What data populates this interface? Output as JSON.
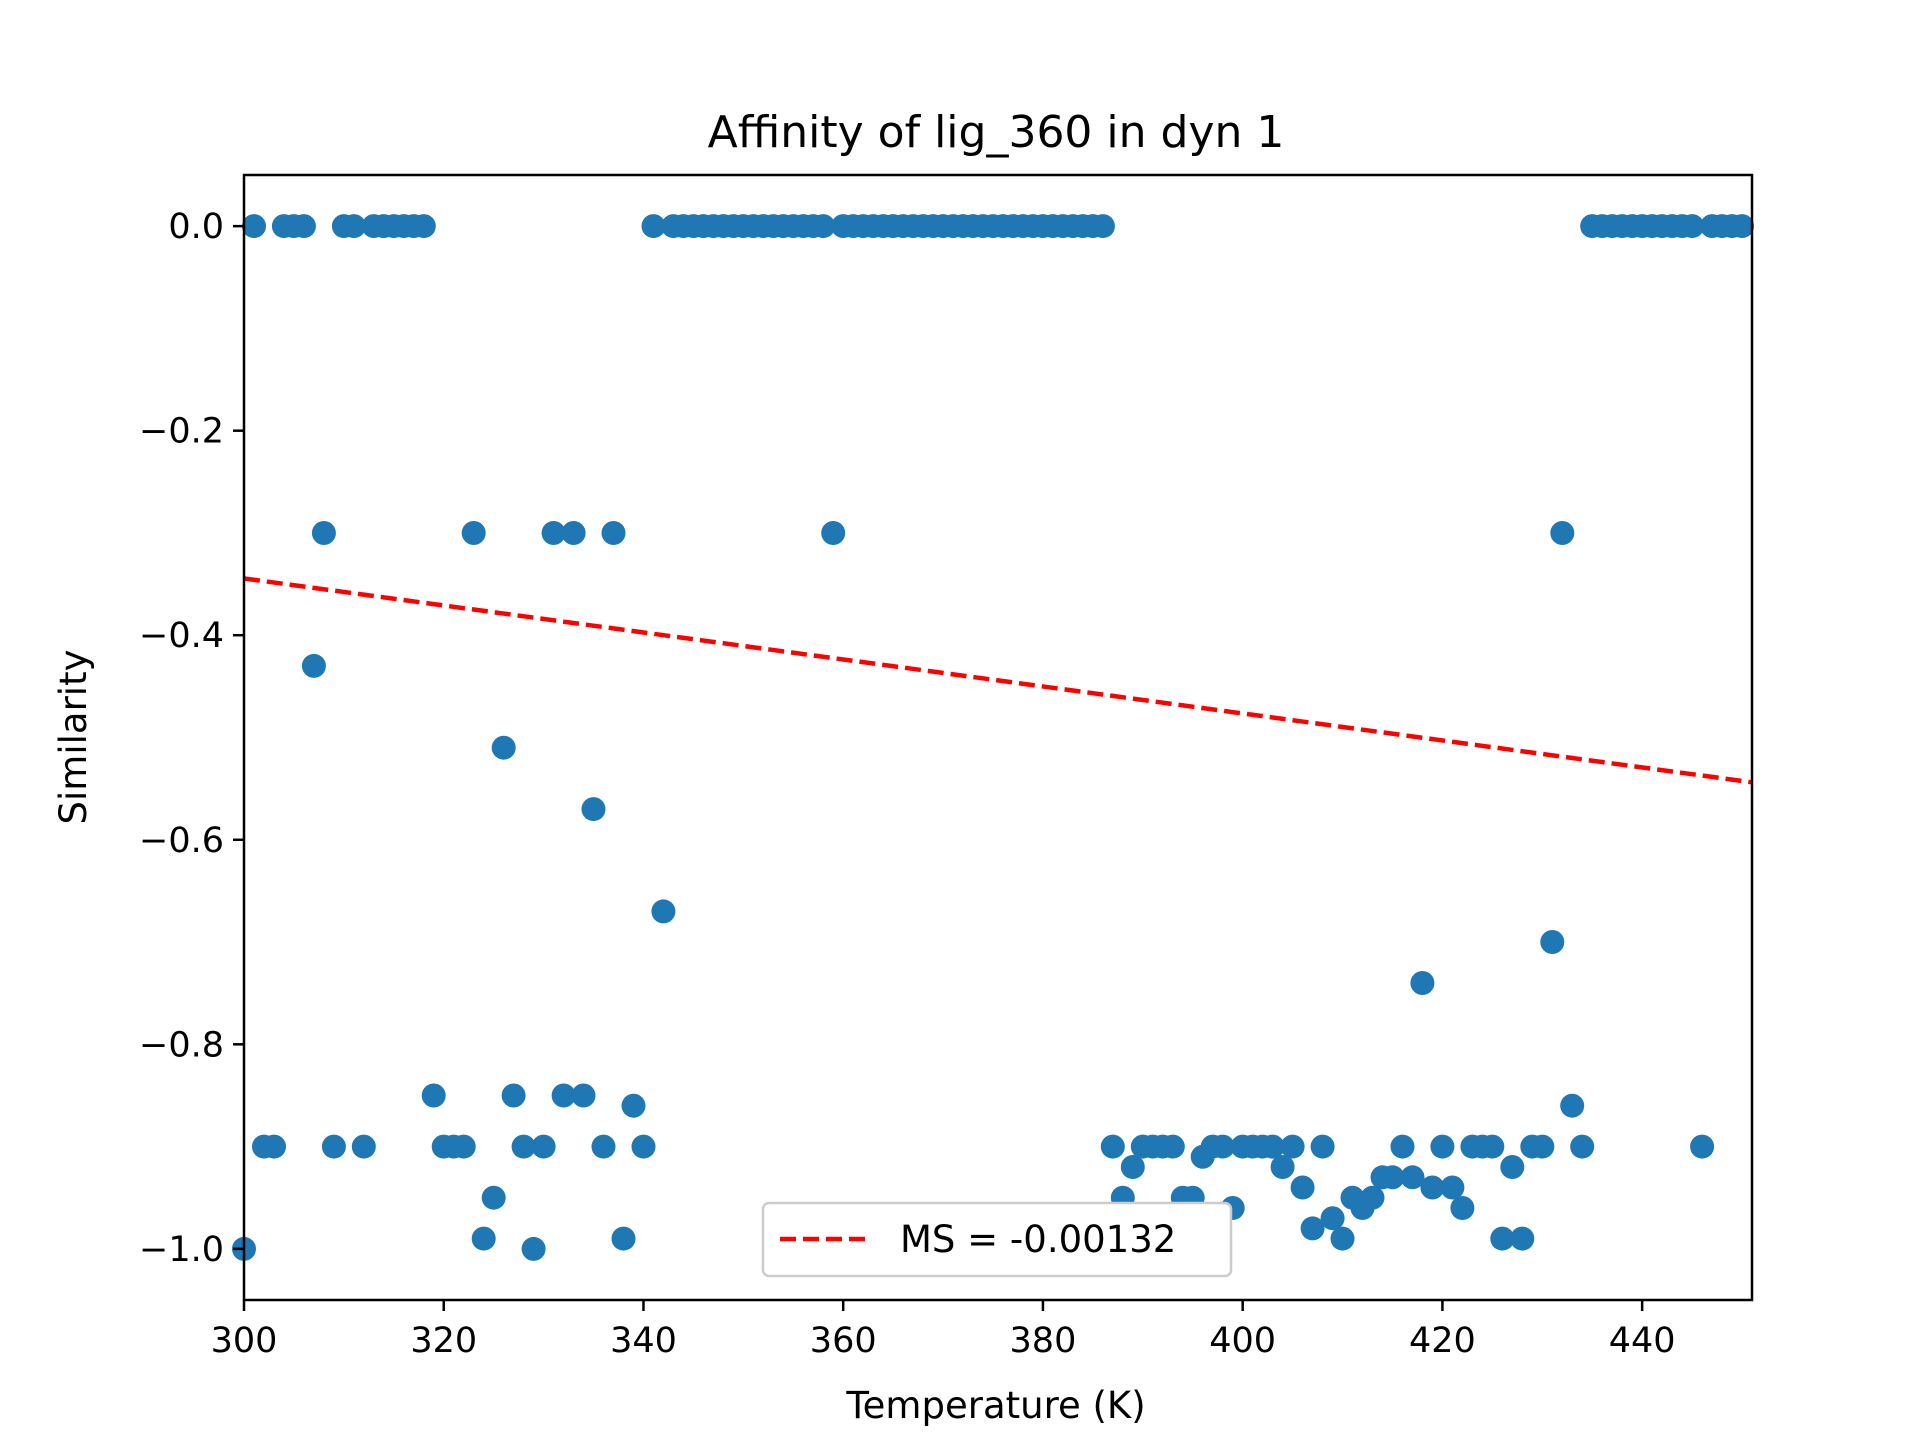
{
  "chart_data": {
    "type": "scatter",
    "title": "Affinity of lig_360 in dyn 1",
    "xlabel": "Temperature (K)",
    "ylabel": "Similarity",
    "xlim": [
      300,
      451
    ],
    "ylim": [
      -1.05,
      0.05
    ],
    "x_ticks": [
      300,
      320,
      340,
      360,
      380,
      400,
      420,
      440
    ],
    "y_ticks": [
      0.0,
      -0.2,
      -0.4,
      -0.6,
      -0.8,
      -1.0
    ],
    "x_tick_labels": [
      "300",
      "320",
      "340",
      "360",
      "380",
      "400",
      "420",
      "440"
    ],
    "y_tick_labels": [
      "0.0",
      "−0.2",
      "−0.4",
      "−0.6",
      "−0.8",
      "−1.0"
    ],
    "grid": false,
    "legend_position": "lower-center",
    "colors": {
      "points": "#1f77b4",
      "trend": "#ff0000"
    },
    "series": [
      {
        "type": "scatter",
        "x": [
          300,
          301,
          302,
          303,
          304,
          305,
          306,
          307,
          308,
          309,
          310,
          311,
          312,
          313,
          314,
          315,
          316,
          317,
          318,
          319,
          320,
          321,
          322,
          323,
          324,
          325,
          326,
          327,
          328,
          329,
          330,
          331,
          332,
          333,
          334,
          335,
          336,
          337,
          338,
          339,
          340,
          341,
          342,
          343,
          344,
          345,
          346,
          347,
          348,
          349,
          350,
          351,
          352,
          353,
          354,
          355,
          356,
          357,
          358,
          359,
          360,
          361,
          362,
          363,
          364,
          365,
          366,
          367,
          368,
          369,
          370,
          371,
          372,
          373,
          374,
          375,
          376,
          377,
          378,
          379,
          380,
          381,
          382,
          383,
          384,
          385,
          386,
          387,
          388,
          389,
          390,
          391,
          392,
          393,
          394,
          395,
          396,
          397,
          398,
          399,
          400,
          401,
          402,
          403,
          404,
          405,
          406,
          407,
          408,
          409,
          410,
          411,
          412,
          413,
          414,
          415,
          416,
          417,
          418,
          419,
          420,
          421,
          422,
          423,
          424,
          425,
          426,
          427,
          428,
          429,
          430,
          431,
          432,
          433,
          434,
          435,
          436,
          437,
          438,
          439,
          440,
          441,
          442,
          443,
          444,
          445,
          446,
          447,
          448,
          449,
          450
        ],
        "y": [
          -1.0,
          0.0,
          -0.9,
          -0.9,
          0.0,
          0.0,
          0.0,
          -0.43,
          -0.3,
          -0.9,
          0.0,
          0.0,
          -0.9,
          0.0,
          0.0,
          0.0,
          0.0,
          0.0,
          0.0,
          -0.85,
          -0.9,
          -0.9,
          -0.9,
          -0.3,
          -0.99,
          -0.95,
          -0.51,
          -0.85,
          -0.9,
          -1.0,
          -0.9,
          -0.3,
          -0.85,
          -0.3,
          -0.85,
          -0.57,
          -0.9,
          -0.3,
          -0.99,
          -0.86,
          -0.9,
          0.0,
          -0.67,
          0.0,
          0.0,
          0.0,
          0.0,
          0.0,
          0.0,
          0.0,
          0.0,
          0.0,
          0.0,
          0.0,
          0.0,
          0.0,
          0.0,
          0.0,
          0.0,
          -0.3,
          0.0,
          0.0,
          0.0,
          0.0,
          0.0,
          0.0,
          0.0,
          0.0,
          0.0,
          0.0,
          0.0,
          0.0,
          0.0,
          0.0,
          0.0,
          0.0,
          0.0,
          0.0,
          0.0,
          0.0,
          0.0,
          0.0,
          0.0,
          0.0,
          0.0,
          0.0,
          0.0,
          -0.9,
          -0.95,
          -0.92,
          -0.9,
          -0.9,
          -0.9,
          -0.9,
          -0.95,
          -0.95,
          -0.91,
          -0.9,
          -0.9,
          -0.96,
          -0.9,
          -0.9,
          -0.9,
          -0.9,
          -0.92,
          -0.9,
          -0.94,
          -0.98,
          -0.9,
          -0.97,
          -0.99,
          -0.95,
          -0.96,
          -0.95,
          -0.93,
          -0.93,
          -0.9,
          -0.93,
          -0.74,
          -0.94,
          -0.9,
          -0.94,
          -0.96,
          -0.9,
          -0.9,
          -0.9,
          -0.99,
          -0.92,
          -0.99,
          -0.9,
          -0.9,
          -0.7,
          -0.3,
          -0.86,
          -0.9,
          0.0,
          0.0,
          0.0,
          0.0,
          0.0,
          0.0,
          0.0,
          0.0,
          0.0,
          0.0,
          0.0,
          -0.9,
          0.0,
          0.0,
          0.0,
          0.0
        ]
      },
      {
        "type": "line",
        "name": "MS = -0.00132",
        "x": [
          300,
          451
        ],
        "y": [
          -0.3445,
          -0.5438
        ]
      }
    ]
  }
}
